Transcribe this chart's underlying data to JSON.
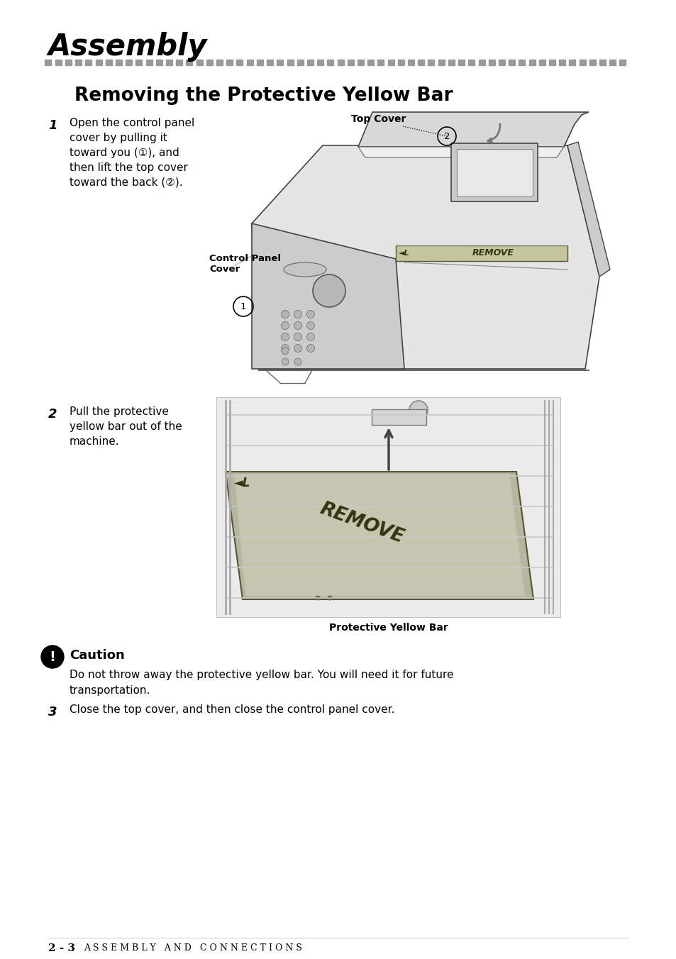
{
  "title": "Assembly",
  "section_title": "Removing the Protective Yellow Bar",
  "dot_color": "#999999",
  "background": "#ffffff",
  "step1_number": "1",
  "step1_text_lines": [
    "Open the control panel",
    "cover by pulling it",
    "toward you (①), and",
    "then lift the top cover",
    "toward the back (②)."
  ],
  "step2_number": "2",
  "step2_text_lines": [
    "Pull the protective",
    "yellow bar out of the",
    "machine."
  ],
  "step3_number": "3",
  "step3_text": "Close the top cover, and then close the control panel cover.",
  "caution_title": "Caution",
  "caution_text_lines": [
    "Do not throw away the protective yellow bar. You will need it for future",
    "transportation."
  ],
  "label_top_cover": "Top Cover",
  "label_control_panel_cover": "Control Panel\nCover",
  "label_protective_yellow_bar": "Protective Yellow Bar",
  "footer_bold": "2 - 3",
  "footer_text": "A S S E M B L Y   A N D   C O N N E C T I O N S"
}
